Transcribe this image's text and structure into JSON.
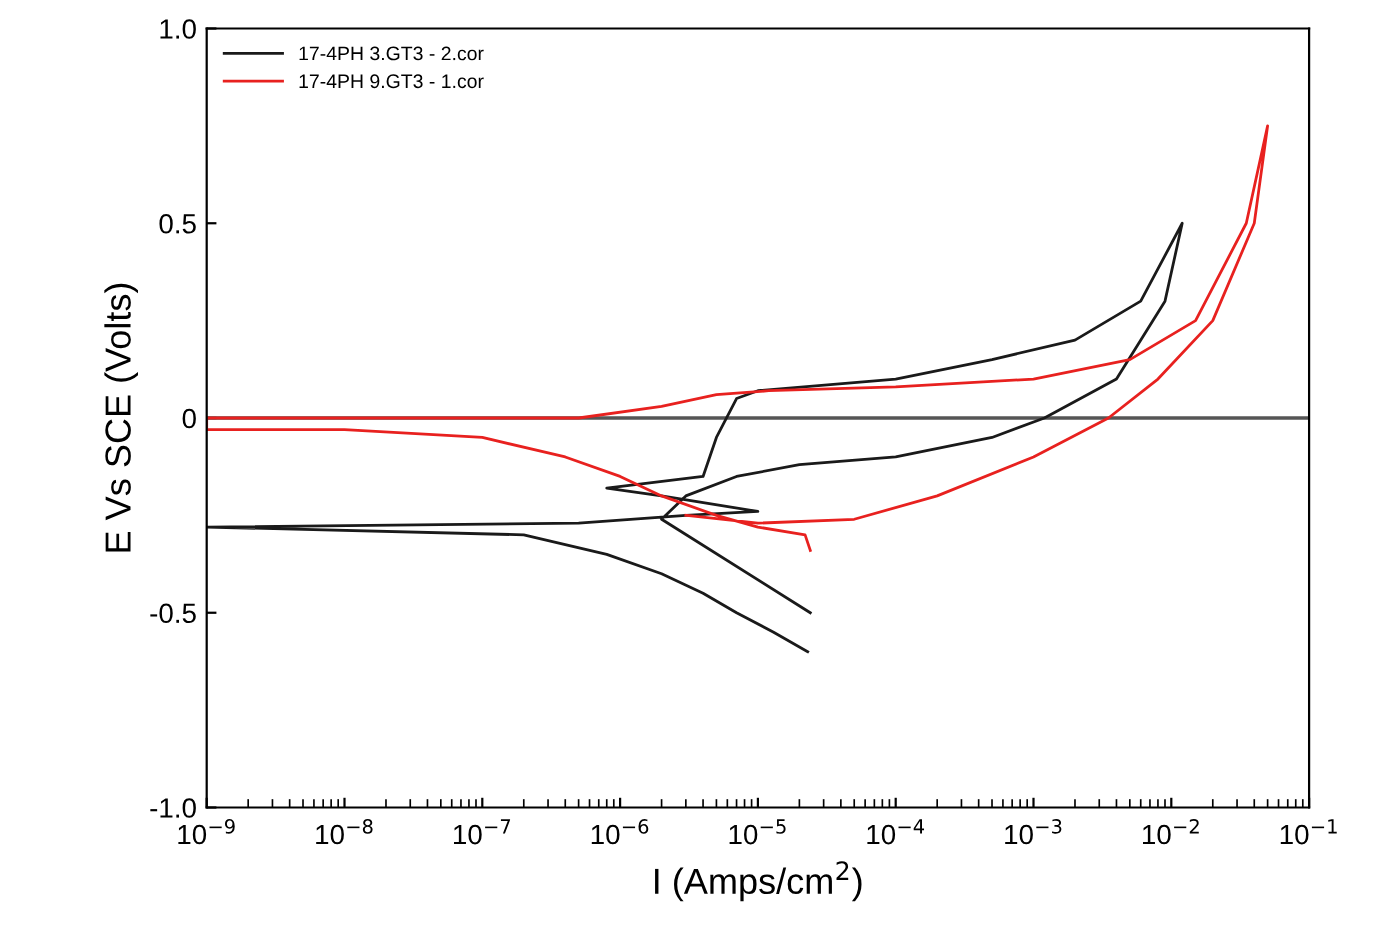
{
  "chart_data": {
    "type": "line",
    "xlabel": "I (Amps/cm$^{2}$)",
    "ylabel": "E Vs SCE (Volts)",
    "log": "x",
    "xlim": [
      1e-09,
      0.1
    ],
    "ylim": [
      -1.0,
      1.0
    ],
    "xticks": [
      {
        "value": 1e-09,
        "label": "10$^{−9}$"
      },
      {
        "value": 1e-08,
        "label": "10$^{−8}$"
      },
      {
        "value": 1e-07,
        "label": "10$^{−7}$"
      },
      {
        "value": 1e-06,
        "label": "10$^{−6}$"
      },
      {
        "value": 1e-05,
        "label": "10$^{−5}$"
      },
      {
        "value": 0.0001,
        "label": "10$^{−4}$"
      },
      {
        "value": 0.001,
        "label": "10$^{−3}$"
      },
      {
        "value": 0.01,
        "label": "10$^{−2}$"
      },
      {
        "value": 0.1,
        "label": "10$^{−1}$"
      }
    ],
    "yticks": [
      {
        "value": -1.0,
        "label": "-1.0"
      },
      {
        "value": -0.5,
        "label": "-0.5"
      },
      {
        "value": 0,
        "label": "0"
      },
      {
        "value": 0.5,
        "label": "0.5"
      },
      {
        "value": 1.0,
        "label": "1.0"
      }
    ],
    "grid": false,
    "legend": "top left",
    "marker": "none",
    "line_style": "solid",
    "ref_lines": [
      {
        "axis": "y",
        "value": 0,
        "color": "#555555"
      }
    ],
    "series": [
      {
        "name": "17-4PH 3.GT3 - 2.cor",
        "color": "#1a1a1a",
        "x": [
          2.3e-05,
          1.3e-05,
          7e-06,
          4e-06,
          2e-06,
          8e-07,
          2e-07,
          1e-09,
          5e-07,
          3e-06,
          1e-05,
          2e-06,
          8e-07,
          4e-06,
          5e-06,
          7e-06,
          1e-05,
          0.0001,
          0.0005,
          0.002,
          0.006,
          0.012,
          0.009,
          0.004,
          0.0012,
          0.0005,
          0.0001,
          2e-05,
          7e-06,
          3e-06,
          2e-06,
          2.4e-05
        ],
        "values": [
          -0.6,
          -0.55,
          -0.5,
          -0.45,
          -0.4,
          -0.35,
          -0.3,
          -0.28,
          -0.27,
          -0.25,
          -0.24,
          -0.2,
          -0.18,
          -0.15,
          -0.05,
          0.05,
          0.07,
          0.1,
          0.15,
          0.2,
          0.3,
          0.5,
          0.3,
          0.1,
          0.0,
          -0.05,
          -0.1,
          -0.12,
          -0.15,
          -0.2,
          -0.26,
          -0.5
        ]
      },
      {
        "name": "17-4PH 9.GT3 - 1.cor",
        "color": "#e8211f",
        "x": [
          2.4e-05,
          2.2e-05,
          1e-05,
          5e-06,
          2e-06,
          1e-06,
          4e-07,
          1e-07,
          1e-08,
          1e-09,
          1e-09,
          5e-07,
          2e-06,
          5e-06,
          1.2e-05,
          0.0001,
          0.001,
          0.005,
          0.015,
          0.035,
          0.05,
          0.04,
          0.02,
          0.008,
          0.0035,
          0.001,
          0.0002,
          5e-05,
          1e-05,
          3e-06
        ],
        "values": [
          -0.34,
          -0.3,
          -0.28,
          -0.25,
          -0.2,
          -0.15,
          -0.1,
          -0.05,
          -0.03,
          -0.03,
          0.0,
          0.0,
          0.03,
          0.06,
          0.07,
          0.08,
          0.1,
          0.15,
          0.25,
          0.5,
          0.75,
          0.5,
          0.25,
          0.1,
          0.0,
          -0.1,
          -0.2,
          -0.26,
          -0.27,
          -0.25
        ]
      }
    ]
  }
}
